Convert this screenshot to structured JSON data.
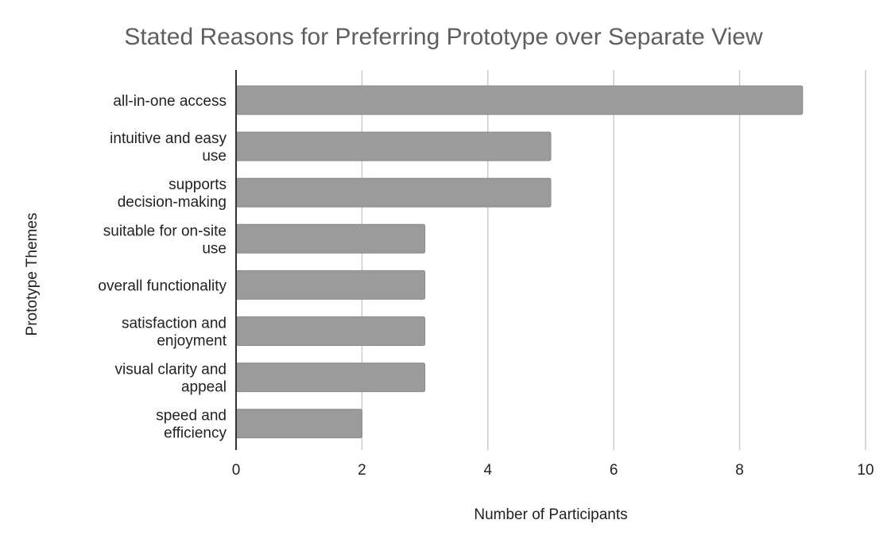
{
  "chart_data": {
    "type": "bar",
    "orientation": "horizontal",
    "title": "Stated Reasons for Preferring Prototype over Separate View",
    "xlabel": "Number of Participants",
    "ylabel": "Prototype Themes",
    "categories": [
      [
        "all-in-one access"
      ],
      [
        "intuitive and easy",
        "use"
      ],
      [
        "supports",
        "decision-making"
      ],
      [
        "suitable for on-site",
        "use"
      ],
      [
        "overall functionality"
      ],
      [
        "satisfaction and",
        "enjoyment"
      ],
      [
        "visual clarity and",
        "appeal"
      ],
      [
        "speed and",
        "efficiency"
      ]
    ],
    "values": [
      9,
      5,
      5,
      3,
      3,
      3,
      3,
      2
    ],
    "xlim": [
      0,
      10
    ],
    "xticks": [
      0,
      2,
      4,
      6,
      8,
      10
    ],
    "grid": "vertical",
    "legend": "none",
    "colors": {
      "bar": "#9b9b9b",
      "bar_stroke": "#8a8a8a",
      "grid": "#cccccc",
      "axis": "#333333",
      "title": "#5f5f5f",
      "text": "#222222"
    }
  }
}
